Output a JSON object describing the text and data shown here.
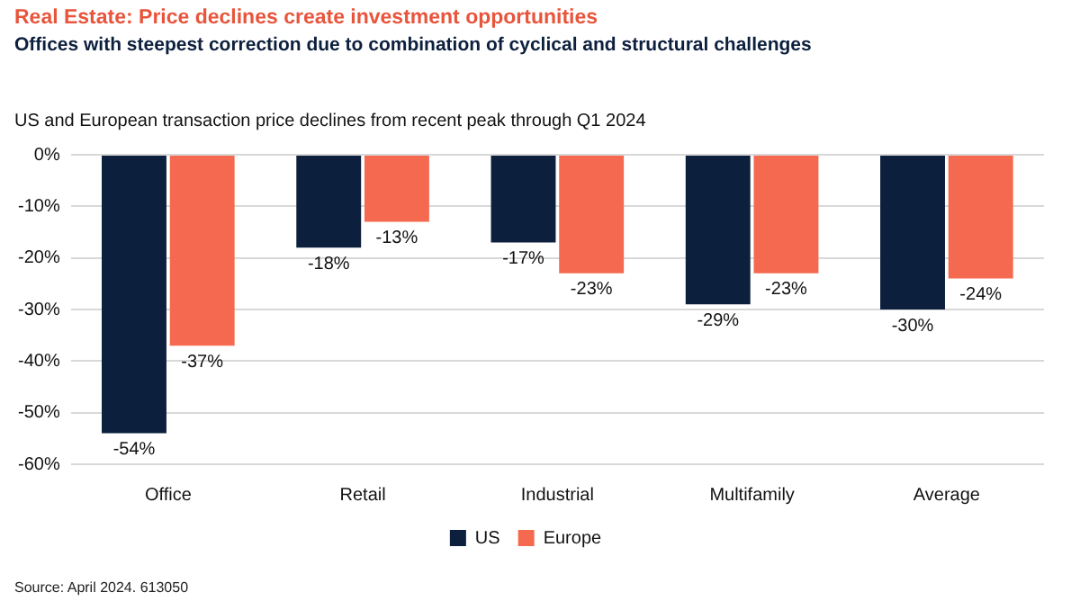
{
  "chart_data": {
    "type": "bar",
    "title": "Real Estate: Price declines create investment opportunities",
    "subtitle": "Offices with steepest correction due to combination of cyclical and structural challenges",
    "annotations": [
      "US and European transaction price declines from recent peak through Q1 2024",
      "Source: April 2024. 613050"
    ],
    "categories": [
      "Office",
      "Retail",
      "Industrial",
      "Multifamily",
      "Average"
    ],
    "series": [
      {
        "name": "US",
        "color": "#0c1f3d",
        "values": [
          -54,
          -18,
          -17,
          -29,
          -30
        ],
        "value_labels": [
          "-54%",
          "-18%",
          "-17%",
          "-29%",
          "-30%"
        ]
      },
      {
        "name": "Europe",
        "color": "#f4694f",
        "values": [
          -37,
          -13,
          -23,
          -23,
          -24
        ],
        "value_labels": [
          "-37%",
          "-13%",
          "-23%",
          "-23%",
          "-24%"
        ]
      }
    ],
    "ylim": [
      -60,
      0
    ],
    "yticks": [
      {
        "value": 0,
        "label": "0%"
      },
      {
        "value": -10,
        "label": "-10%"
      },
      {
        "value": -20,
        "label": "-20%"
      },
      {
        "value": -30,
        "label": "-30%"
      },
      {
        "value": -40,
        "label": "-40%"
      },
      {
        "value": -50,
        "label": "-50%"
      },
      {
        "value": -60,
        "label": "-60%"
      }
    ],
    "grid": "y",
    "legend": "bottom"
  }
}
